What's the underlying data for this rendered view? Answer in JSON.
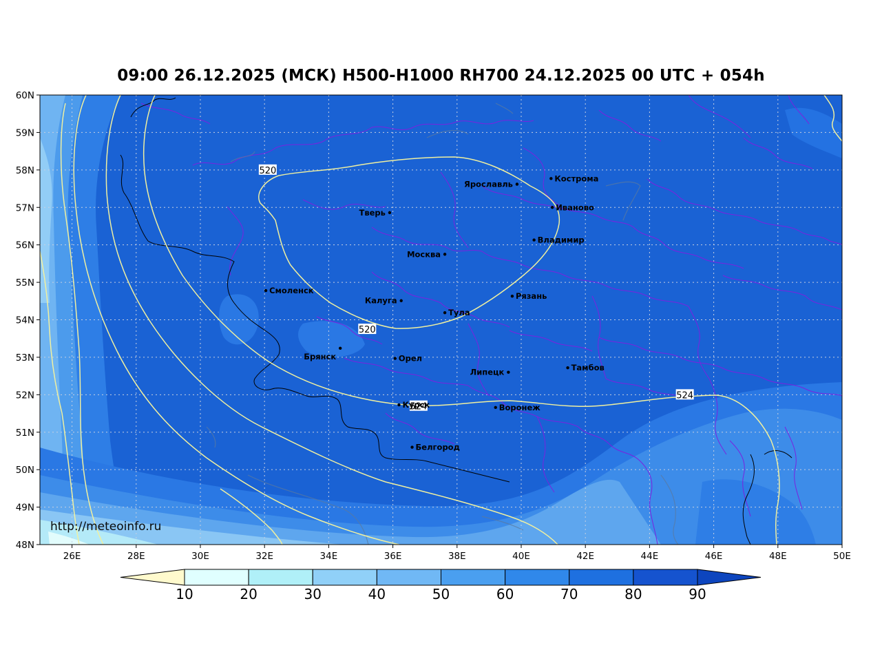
{
  "title": "09:00 26.12.2025 (МСК) H500-H1000 RH700 24.12.2025 00 UTC + 054h",
  "watermark": "http://meteoinfo.ru",
  "axes": {
    "lat_labels": [
      "60N",
      "59N",
      "58N",
      "57N",
      "56N",
      "55N",
      "54N",
      "53N",
      "52N",
      "51N",
      "50N",
      "49N",
      "48N"
    ],
    "lon_labels": [
      "26E",
      "28E",
      "30E",
      "32E",
      "34E",
      "36E",
      "38E",
      "40E",
      "42E",
      "44E",
      "46E",
      "48E",
      "50E"
    ],
    "lat_range": [
      48,
      60
    ],
    "lon_range": [
      25,
      50
    ],
    "grid": true
  },
  "cities": [
    {
      "name": "Кострома",
      "lat": 57.77,
      "lon": 40.93
    },
    {
      "name": "Ярославль",
      "lat": 57.62,
      "lon": 39.87
    },
    {
      "name": "Иваново",
      "lat": 57.0,
      "lon": 40.97
    },
    {
      "name": "Тверь",
      "lat": 56.86,
      "lon": 35.9
    },
    {
      "name": "Владимир",
      "lat": 56.13,
      "lon": 40.4
    },
    {
      "name": "Москва",
      "lat": 55.75,
      "lon": 37.62
    },
    {
      "name": "Смоленск",
      "lat": 54.78,
      "lon": 32.04
    },
    {
      "name": "Калуга",
      "lat": 54.51,
      "lon": 36.26
    },
    {
      "name": "Рязань",
      "lat": 54.63,
      "lon": 39.72
    },
    {
      "name": "Тула",
      "lat": 54.19,
      "lon": 37.62
    },
    {
      "name": "Брянск",
      "lat": 53.24,
      "lon": 34.36
    },
    {
      "name": "Орел",
      "lat": 52.97,
      "lon": 36.07
    },
    {
      "name": "Липецк",
      "lat": 52.6,
      "lon": 39.6
    },
    {
      "name": "Тамбов",
      "lat": 52.72,
      "lon": 41.45
    },
    {
      "name": "Курск",
      "lat": 51.73,
      "lon": 36.19
    },
    {
      "name": "Воронеж",
      "lat": 51.66,
      "lon": 39.2
    },
    {
      "name": "Белгород",
      "lat": 50.6,
      "lon": 36.6
    }
  ],
  "contours": [
    {
      "label": "520",
      "label_positions": [
        [
          32.1,
          58.0
        ],
        [
          35.2,
          53.75
        ]
      ]
    },
    {
      "label": "524",
      "label_positions": [
        [
          36.8,
          51.7
        ],
        [
          45.1,
          52.0
        ]
      ]
    }
  ],
  "colorbar": {
    "labels": [
      "10",
      "20",
      "30",
      "40",
      "50",
      "60",
      "70",
      "80",
      "90"
    ],
    "colors": [
      "#fffacd",
      "#e0ffff",
      "#b0f0f8",
      "#90d0f8",
      "#70b8f5",
      "#4a9ff0",
      "#3088ea",
      "#1e70e0",
      "#1553cf",
      "#0d45be"
    ]
  },
  "colors": {
    "map_base": "#1a62d4",
    "contour": "#f0f0a0",
    "border": "#7a22e0",
    "country_border": "#000000",
    "river": "#5a7aa0",
    "grid": "#c8d0e0"
  },
  "chart_data": {
    "type": "map",
    "variable": "RH700",
    "contour_variable": "H500-H1000",
    "contour_values": [
      520,
      524
    ]
  }
}
